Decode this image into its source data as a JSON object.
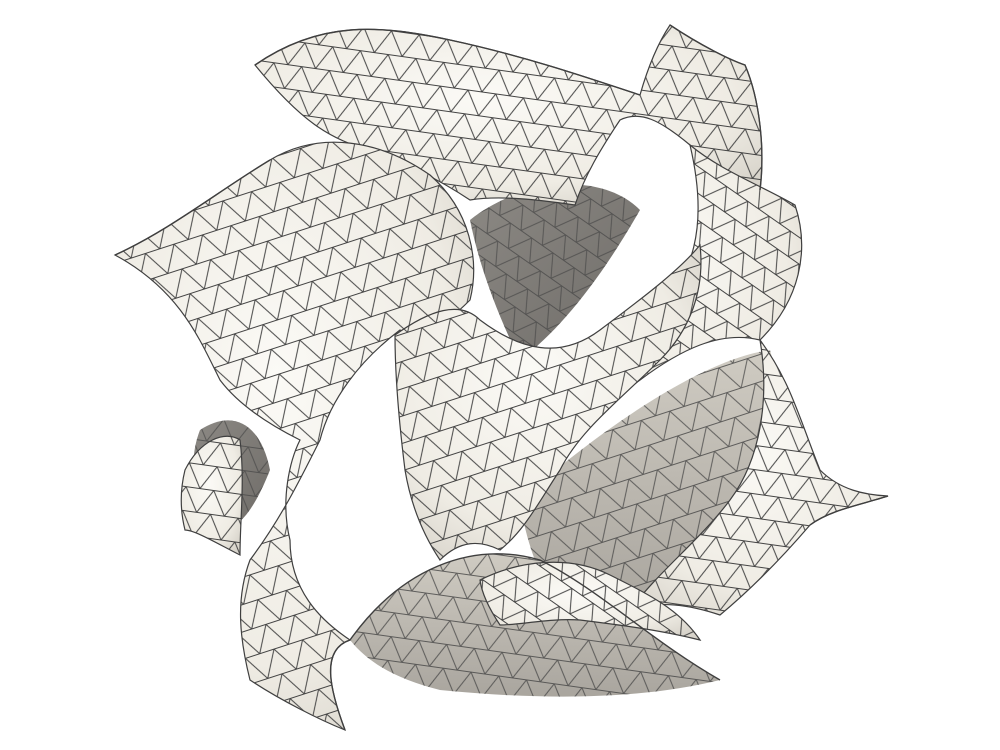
{
  "render": {
    "background_color": "#ffffff",
    "surface_color": "#f3f0e9",
    "highlight_color": "#fbfaf6",
    "shade_color": "#cfcbc2",
    "deep_shadow_color": "#7f7c77",
    "edge_color": "#3f3f3f",
    "surface_type": "triangulated-mesh"
  }
}
